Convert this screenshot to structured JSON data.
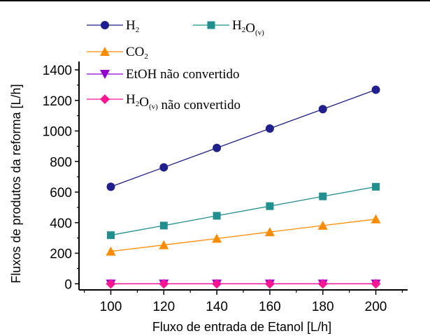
{
  "chart_data": {
    "type": "line",
    "xlabel": "Fluxo de entrada de Etanol [L/h]",
    "ylabel": "Fluxos de produtos da reforma [L/h]",
    "xlim": [
      88,
      212
    ],
    "ylim": [
      -40,
      1400
    ],
    "x_ticks": [
      "100",
      "120",
      "140",
      "160",
      "180",
      "200"
    ],
    "y_ticks": [
      "0",
      "200",
      "400",
      "600",
      "800",
      "1000",
      "1200",
      "1400"
    ],
    "x": [
      100,
      120,
      140,
      160,
      180,
      200
    ],
    "grid": false,
    "legend_position": "top-left",
    "series": [
      {
        "key": "h2",
        "legend_main": "H",
        "legend_sub": "2",
        "legend_rest": "",
        "name": "H2",
        "color": "#1f1f8f",
        "marker": "circle",
        "values": [
          635,
          762,
          889,
          1016,
          1143,
          1270
        ]
      },
      {
        "key": "h2o",
        "legend_main": "H",
        "legend_sub": "2",
        "legend_rest": "O",
        "legend_sub2": "(v)",
        "name": "H2O(v)",
        "color": "#1f8f8f",
        "marker": "square",
        "values": [
          318,
          381,
          445,
          508,
          572,
          635
        ]
      },
      {
        "key": "co2",
        "legend_main": "CO",
        "legend_sub": "2",
        "legend_rest": "",
        "name": "CO2",
        "color": "#ff8c00",
        "marker": "triangle-up",
        "values": [
          212,
          254,
          296,
          339,
          381,
          423
        ]
      },
      {
        "key": "etoh",
        "legend_main": "EtOH não convertido",
        "name": "EtOH não convertido",
        "color": "#9400d3",
        "marker": "triangle-down",
        "values": [
          0,
          0,
          0,
          0,
          0,
          0
        ]
      },
      {
        "key": "h2o_nc",
        "legend_main": "H",
        "legend_sub": "2",
        "legend_rest": "O",
        "legend_sub2": "(v)",
        "legend_tail": " não convertido",
        "name": "H2O(v) não convertido",
        "color": "#ff1493",
        "marker": "diamond",
        "values": [
          0,
          0,
          0,
          0,
          0,
          0
        ]
      }
    ]
  }
}
